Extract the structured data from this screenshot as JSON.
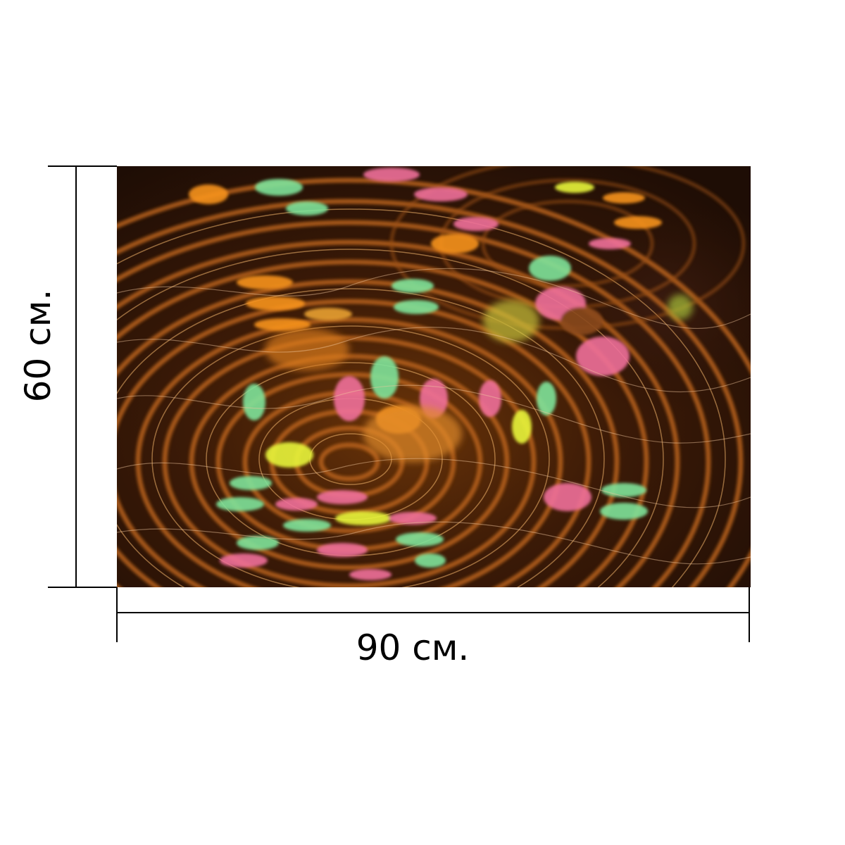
{
  "product": {
    "width_label": "90 см.",
    "height_label": "60 см."
  },
  "artwork": {
    "subject": "abstract-water-ripple",
    "colors": {
      "base": "#2a1206",
      "ring": "#b8621a",
      "highlight": "#f2b56b",
      "accent_green": "#7fe39a",
      "accent_pink": "#ef6f9a",
      "accent_orange": "#f7931e",
      "accent_yellow": "#e8f53a"
    }
  },
  "dimension_line_color": "#000000"
}
